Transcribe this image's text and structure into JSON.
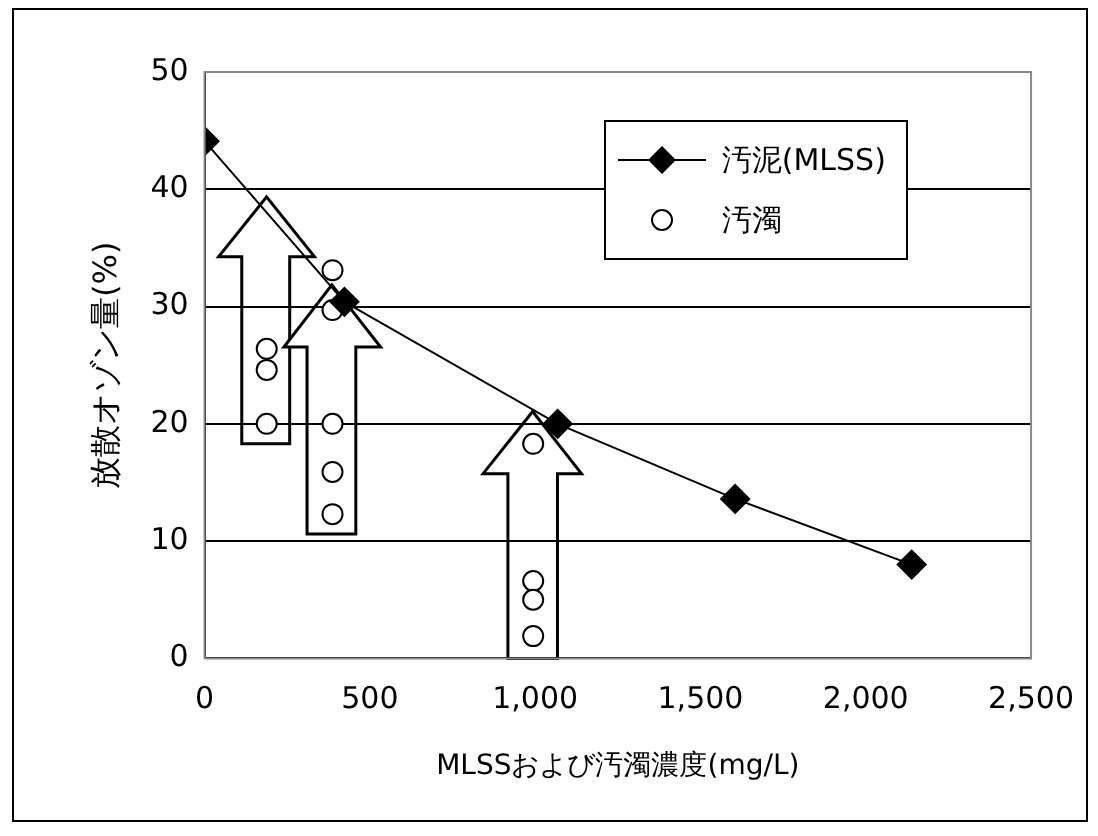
{
  "chart_data": {
    "type": "line",
    "xlabel": "MLSSおよび汚濁濃度(mg/L)",
    "ylabel": "放散オゾン量(%)",
    "xlim": [
      0,
      2500
    ],
    "xticks": [
      0,
      500,
      {
        "value": 1000,
        "label": "1,000"
      },
      {
        "value": 1500,
        "label": "1,500"
      },
      {
        "value": 2000,
        "label": "2,000"
      },
      {
        "value": 2500,
        "label": "2,500"
      }
    ],
    "ylim": [
      0,
      50
    ],
    "yticks": [
      0,
      10,
      20,
      30,
      40,
      50
    ],
    "grid": "y",
    "legend": "top right",
    "series": [
      {
        "name": "汚泥(MLSS)",
        "type": "line",
        "marker": "diamond",
        "color": "#000000",
        "x": [
          0,
          423,
          1068,
          1605,
          2139
        ],
        "values": [
          44.1,
          30.4,
          20,
          13.6,
          8
        ]
      },
      {
        "name": "汚濁",
        "type": "scatter",
        "marker": "circle",
        "color": "#000000",
        "x": [
          188,
          188,
          188,
          387,
          387,
          387,
          387,
          387,
          994,
          994,
          994,
          994
        ],
        "values": [
          26.4,
          24.6,
          20,
          33.1,
          29.7,
          20,
          15.9,
          12.3,
          18.3,
          6.6,
          5,
          1.9
        ]
      }
    ]
  }
}
